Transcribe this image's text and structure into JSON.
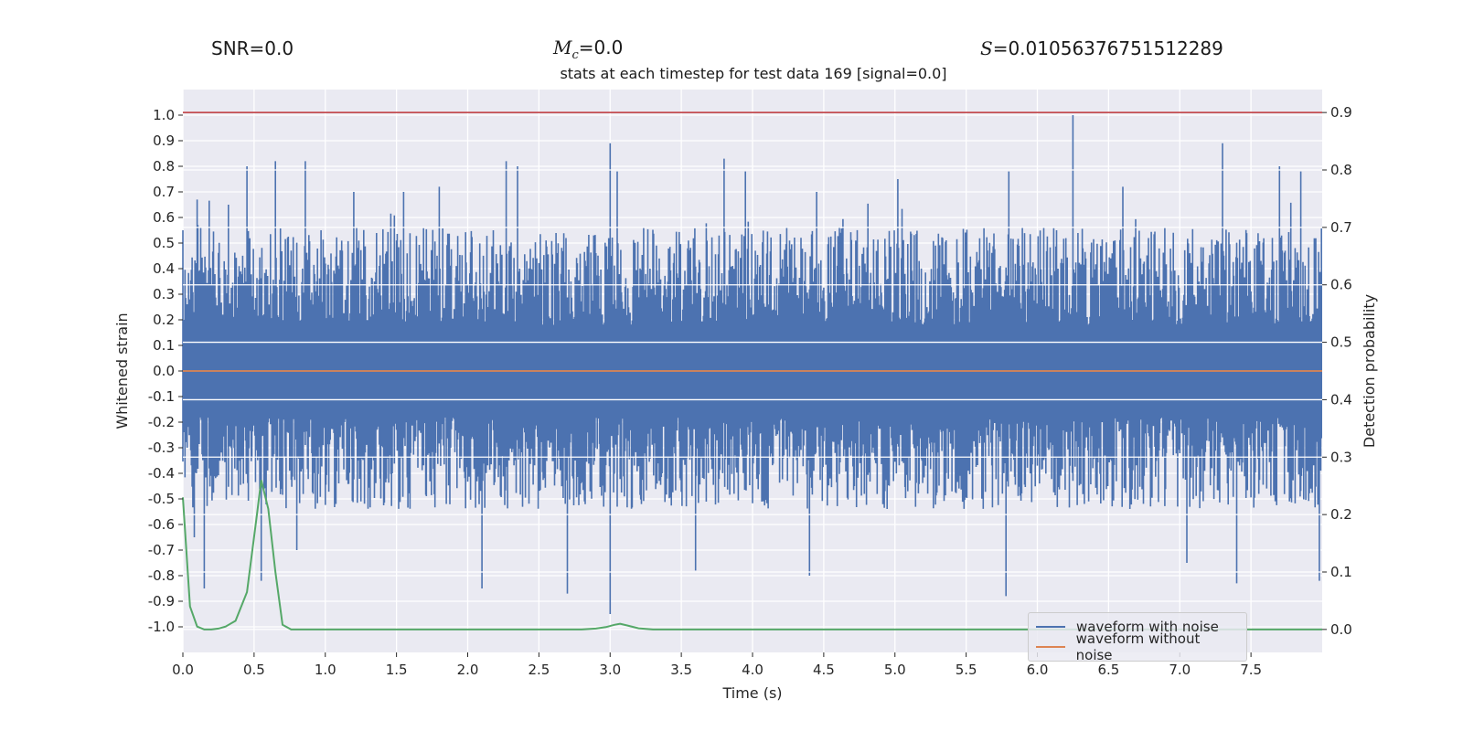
{
  "header": {
    "snr": "SNR=0.0",
    "mc_symbol": "M",
    "mc_sub": "c",
    "mc_value": "=0.0",
    "s_symbol": "S",
    "s_value": "=0.010563767515122​89"
  },
  "chart_data": {
    "type": "line",
    "title": "stats at each timestep for test data 169 [signal=0.0]",
    "xlabel": "Time (s)",
    "ylabel": "Whitened strain",
    "y2label": "Detection probability",
    "xlim": [
      0.0,
      8.0
    ],
    "ylim": [
      -1.1,
      1.1
    ],
    "y2lim": [
      -0.04,
      0.94
    ],
    "xticks": [
      "0.0",
      "0.5",
      "1.0",
      "1.5",
      "2.0",
      "2.5",
      "3.0",
      "3.5",
      "4.0",
      "4.5",
      "5.0",
      "5.5",
      "6.0",
      "6.5",
      "7.0",
      "7.5"
    ],
    "yticks": [
      "1.0",
      "0.9",
      "0.8",
      "0.7",
      "0.6",
      "0.5",
      "0.4",
      "0.3",
      "0.2",
      "0.1",
      "0.0",
      "-0.1",
      "-0.2",
      "-0.3",
      "-0.4",
      "-0.5",
      "-0.6",
      "-0.7",
      "-0.8",
      "-0.9",
      "-1.0"
    ],
    "y2ticks": [
      "0.9",
      "0.8",
      "0.7",
      "0.6",
      "0.5",
      "0.4",
      "0.3",
      "0.2",
      "0.1",
      "0.0"
    ],
    "threshold": {
      "value": 0.9,
      "axis": "y2",
      "color": "#c44e52"
    },
    "series": [
      {
        "name": "waveform with noise",
        "color": "#4c72b0",
        "axis": "y",
        "description": "dense noise, core band approx -0.1 to 0.13",
        "core_band": [
          -0.1,
          0.13
        ],
        "upper_peaks": [
          [
            0.0,
            0.55
          ],
          [
            0.1,
            0.67
          ],
          [
            0.32,
            0.65
          ],
          [
            0.45,
            0.8
          ],
          [
            0.65,
            0.82
          ],
          [
            0.86,
            0.82
          ],
          [
            1.2,
            0.7
          ],
          [
            1.55,
            0.7
          ],
          [
            1.8,
            0.72
          ],
          [
            2.27,
            0.82
          ],
          [
            2.35,
            0.8
          ],
          [
            3.0,
            0.89
          ],
          [
            3.05,
            0.78
          ],
          [
            3.8,
            0.83
          ],
          [
            3.95,
            0.78
          ],
          [
            4.45,
            0.7
          ],
          [
            5.02,
            0.75
          ],
          [
            5.8,
            0.78
          ],
          [
            6.25,
            1.0
          ],
          [
            6.6,
            0.72
          ],
          [
            7.3,
            0.89
          ],
          [
            7.7,
            0.8
          ],
          [
            7.85,
            0.78
          ]
        ],
        "lower_peaks": [
          [
            0.08,
            -0.65
          ],
          [
            0.15,
            -0.85
          ],
          [
            0.55,
            -0.82
          ],
          [
            0.8,
            -0.7
          ],
          [
            2.1,
            -0.85
          ],
          [
            2.7,
            -0.87
          ],
          [
            3.0,
            -0.95
          ],
          [
            3.6,
            -0.78
          ],
          [
            4.4,
            -0.8
          ],
          [
            5.78,
            -0.88
          ],
          [
            7.05,
            -0.75
          ],
          [
            7.4,
            -0.83
          ],
          [
            7.98,
            -0.82
          ]
        ]
      },
      {
        "name": "waveform without noise",
        "color": "#dd8452",
        "axis": "y",
        "x": [
          0.0,
          8.0
        ],
        "values": [
          0.0,
          0.0
        ]
      },
      {
        "name": "detection probability",
        "color": "#55a868",
        "axis": "y2",
        "x": [
          0.0,
          0.05,
          0.1,
          0.15,
          0.2,
          0.25,
          0.3,
          0.37,
          0.45,
          0.52,
          0.55,
          0.6,
          0.65,
          0.7,
          0.76,
          1.0,
          2.0,
          2.8,
          2.9,
          2.97,
          3.03,
          3.07,
          3.12,
          3.2,
          3.3,
          4.0,
          5.0,
          6.0,
          7.0,
          8.0
        ],
        "values": [
          0.23,
          0.04,
          0.005,
          0.0,
          0.0,
          0.0015,
          0.005,
          0.015,
          0.065,
          0.2,
          0.26,
          0.21,
          0.1,
          0.008,
          0.0,
          0.0,
          0.0,
          0.0,
          0.0015,
          0.004,
          0.008,
          0.01,
          0.007,
          0.002,
          0.0,
          0.0,
          0.0,
          0.0,
          0.0,
          0.0
        ]
      }
    ],
    "legend": [
      "waveform with noise",
      "waveform without noise"
    ],
    "legend_position": "lower-right"
  }
}
